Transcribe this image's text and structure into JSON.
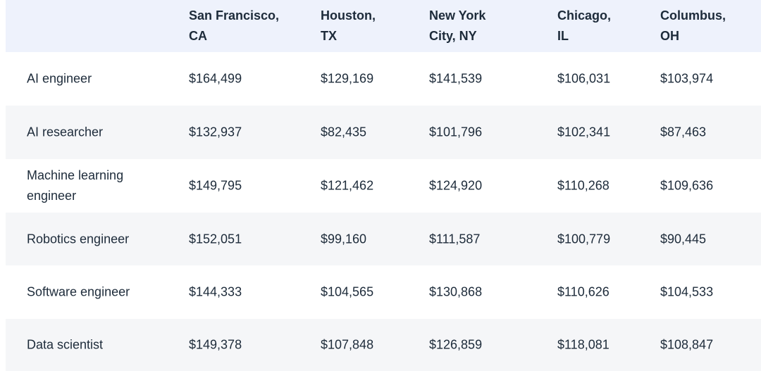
{
  "table": {
    "header": [
      "",
      "San Francisco,\nCA",
      "Houston,\nTX",
      "New York\nCity, NY",
      "Chicago,\nIL",
      "Columbus,\nOH"
    ],
    "rows": [
      [
        "AI engineer",
        "$164,499",
        "$129,169",
        "$141,539",
        "$106,031",
        "$103,974"
      ],
      [
        "AI researcher",
        "$132,937",
        "$82,435",
        "$101,796",
        "$102,341",
        "$87,463"
      ],
      [
        "Machine learning\nengineer",
        "$149,795",
        "$121,462",
        "$124,920",
        "$110,268",
        "$109,636"
      ],
      [
        "Robotics engineer",
        "$152,051",
        "$99,160",
        "$111,587",
        "$100,779",
        "$90,445"
      ],
      [
        "Software engineer",
        "$144,333",
        "$104,565",
        "$130,868",
        "$110,626",
        "$104,533"
      ],
      [
        "Data scientist",
        "$149,378",
        "$107,848",
        "$126,859",
        "$118,081",
        "$108,847"
      ]
    ]
  }
}
